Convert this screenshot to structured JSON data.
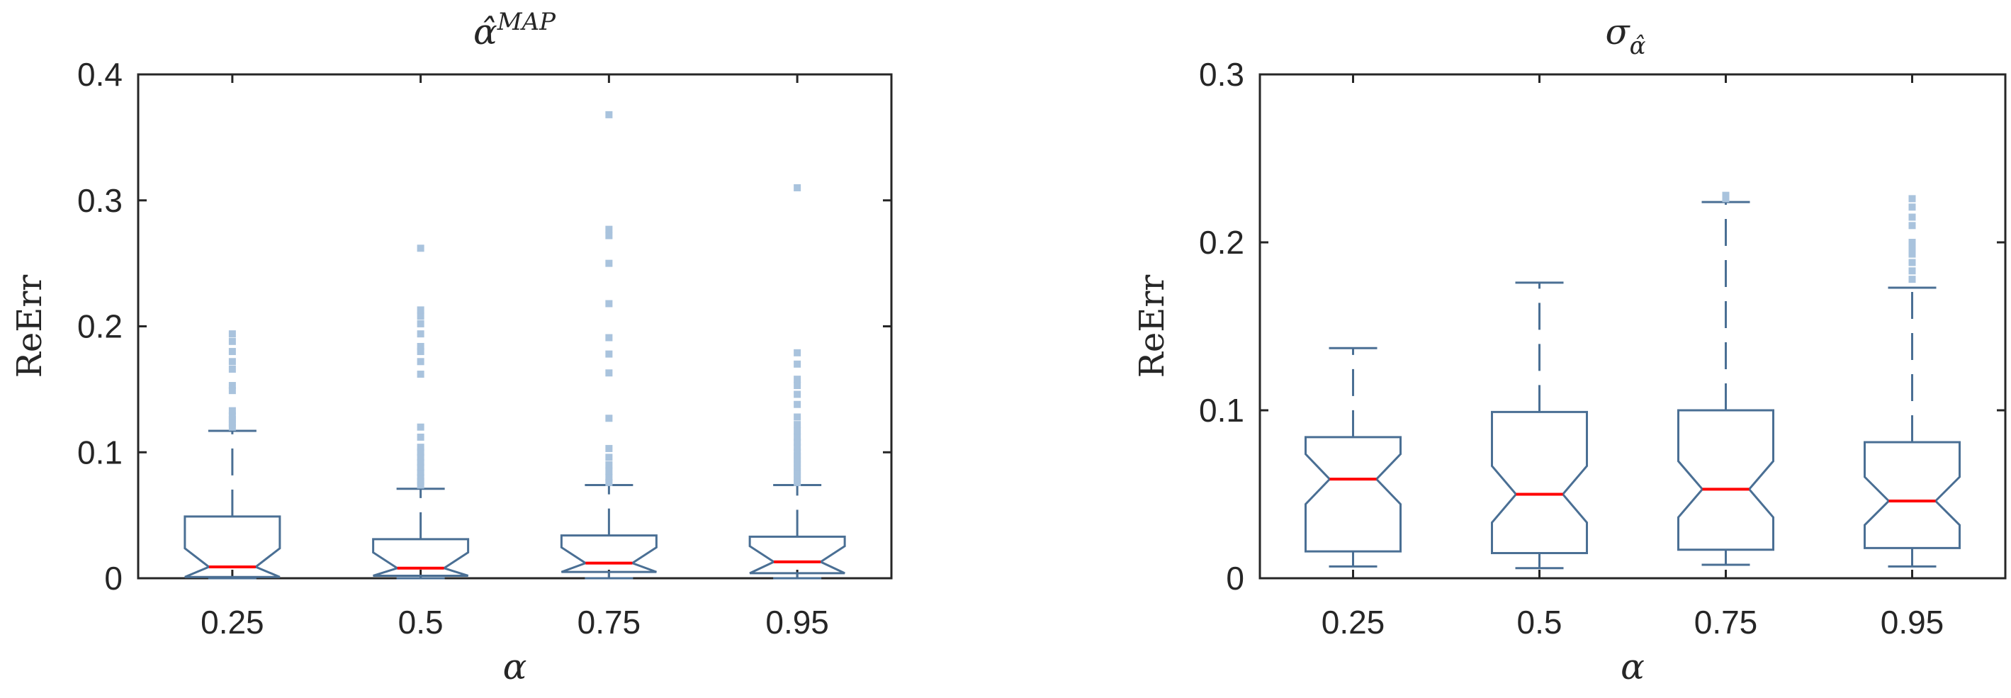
{
  "chart_data": [
    {
      "type": "box",
      "title": "α̂",
      "title_superscript": "MAP",
      "xlabel": "α",
      "ylabel": "ReErr",
      "categories": [
        "0.25",
        "0.5",
        "0.75",
        "0.95"
      ],
      "ylim": [
        0,
        0.4
      ],
      "yticks": [
        "0",
        "0.1",
        "0.2",
        "0.3",
        "0.4"
      ],
      "notched": true,
      "grid": false,
      "colors": {
        "box": "#4a6f94",
        "median": "#ff0000",
        "outlier": "#a9c3dd"
      },
      "boxes": [
        {
          "category": "0.25",
          "whisker_low": 0.0,
          "q1": 0.001,
          "median": 0.009,
          "q3": 0.049,
          "whisker_high": 0.117,
          "outliers": [
            0.12,
            0.123,
            0.126,
            0.129,
            0.133,
            0.149,
            0.153,
            0.166,
            0.172,
            0.18,
            0.188,
            0.194
          ]
        },
        {
          "category": "0.5",
          "whisker_low": 0.0,
          "q1": 0.002,
          "median": 0.008,
          "q3": 0.031,
          "whisker_high": 0.071,
          "outliers": [
            0.074,
            0.077,
            0.08,
            0.084,
            0.088,
            0.092,
            0.096,
            0.1,
            0.104,
            0.112,
            0.12,
            0.162,
            0.172,
            0.18,
            0.184,
            0.194,
            0.202,
            0.208,
            0.213,
            0.262
          ]
        },
        {
          "category": "0.75",
          "whisker_low": 0.0,
          "q1": 0.005,
          "median": 0.012,
          "q3": 0.034,
          "whisker_high": 0.074,
          "outliers": [
            0.076,
            0.08,
            0.085,
            0.09,
            0.096,
            0.103,
            0.127,
            0.163,
            0.178,
            0.191,
            0.218,
            0.25,
            0.272,
            0.277,
            0.368
          ]
        },
        {
          "category": "0.95",
          "whisker_low": 0.0,
          "q1": 0.004,
          "median": 0.013,
          "q3": 0.033,
          "whisker_high": 0.074,
          "outliers": [
            0.076,
            0.079,
            0.082,
            0.085,
            0.088,
            0.091,
            0.094,
            0.097,
            0.1,
            0.104,
            0.108,
            0.112,
            0.117,
            0.122,
            0.128,
            0.138,
            0.146,
            0.153,
            0.158,
            0.17,
            0.179,
            0.31
          ]
        }
      ]
    },
    {
      "type": "box",
      "title": "σ",
      "title_subscript": "α̂",
      "xlabel": "α",
      "ylabel": "ReErr",
      "categories": [
        "0.25",
        "0.5",
        "0.75",
        "0.95"
      ],
      "ylim": [
        0,
        0.3
      ],
      "yticks": [
        "0",
        "0.1",
        "0.2",
        "0.3"
      ],
      "notched": true,
      "grid": false,
      "colors": {
        "box": "#4a6f94",
        "median": "#ff0000",
        "outlier": "#a9c3dd"
      },
      "boxes": [
        {
          "category": "0.25",
          "whisker_low": 0.007,
          "q1": 0.016,
          "median": 0.059,
          "q3": 0.084,
          "whisker_high": 0.137,
          "outliers": []
        },
        {
          "category": "0.5",
          "whisker_low": 0.006,
          "q1": 0.015,
          "median": 0.05,
          "q3": 0.099,
          "whisker_high": 0.176,
          "outliers": []
        },
        {
          "category": "0.75",
          "whisker_low": 0.008,
          "q1": 0.017,
          "median": 0.053,
          "q3": 0.1,
          "whisker_high": 0.224,
          "outliers": [
            0.226,
            0.228
          ]
        },
        {
          "category": "0.95",
          "whisker_low": 0.007,
          "q1": 0.018,
          "median": 0.046,
          "q3": 0.081,
          "whisker_high": 0.173,
          "outliers": [
            0.178,
            0.183,
            0.188,
            0.193,
            0.197,
            0.2,
            0.21,
            0.215,
            0.221,
            0.226
          ]
        }
      ]
    }
  ]
}
